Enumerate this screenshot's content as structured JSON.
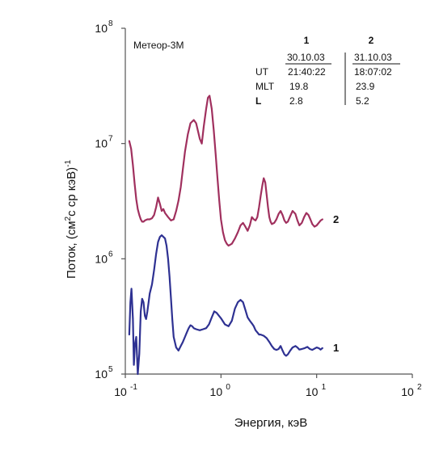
{
  "chart_data": {
    "type": "line",
    "xlabel": "Энергия, кэВ",
    "ylabel_main": "Поток, (см",
    "ylabel_exp1": "2",
    "ylabel_mid": "с ср кэВ)",
    "ylabel_exp2": "-1",
    "xscale": "log",
    "yscale": "log",
    "xlim": [
      0.1,
      100
    ],
    "ylim": [
      100000,
      100000000
    ],
    "grid": false,
    "x_ticks": [
      {
        "base": "10",
        "exp": "-1",
        "value": 0.1
      },
      {
        "base": "10",
        "exp": "0",
        "value": 1
      },
      {
        "base": "10",
        "exp": "1",
        "value": 10
      },
      {
        "base": "10",
        "exp": "2",
        "value": 100
      }
    ],
    "y_ticks": [
      {
        "base": "10",
        "exp": "5",
        "value": 100000
      },
      {
        "base": "10",
        "exp": "6",
        "value": 1000000
      },
      {
        "base": "10",
        "exp": "7",
        "value": 10000000
      },
      {
        "base": "10",
        "exp": "8",
        "value": 100000000
      }
    ],
    "legend": {
      "title": "Метеор-3М",
      "placement": "top",
      "columns": [
        "1",
        "2"
      ],
      "dates": [
        "30.10.03",
        "31.10.03"
      ],
      "rows": [
        {
          "label": "UT",
          "values": [
            "21:40:22",
            "18:07:02"
          ]
        },
        {
          "label": "MLT",
          "values": [
            "19.8",
            "23.9"
          ]
        },
        {
          "label": "L",
          "values": [
            "2.8",
            "5.2"
          ]
        }
      ]
    },
    "series": [
      {
        "name": "2",
        "color": "#a0305e",
        "x": [
          0.11,
          0.115,
          0.12,
          0.125,
          0.13,
          0.135,
          0.14,
          0.145,
          0.15,
          0.155,
          0.16,
          0.17,
          0.18,
          0.19,
          0.2,
          0.21,
          0.22,
          0.23,
          0.24,
          0.25,
          0.26,
          0.28,
          0.3,
          0.32,
          0.34,
          0.36,
          0.38,
          0.4,
          0.42,
          0.45,
          0.48,
          0.52,
          0.55,
          0.6,
          0.63,
          0.66,
          0.7,
          0.73,
          0.76,
          0.8,
          0.84,
          0.88,
          0.92,
          0.96,
          1.0,
          1.05,
          1.1,
          1.15,
          1.2,
          1.3,
          1.4,
          1.5,
          1.6,
          1.7,
          1.8,
          1.9,
          2.0,
          2.1,
          2.2,
          2.3,
          2.4,
          2.5,
          2.6,
          2.7,
          2.8,
          2.9,
          3.0,
          3.1,
          3.2,
          3.3,
          3.4,
          3.6,
          3.8,
          4.0,
          4.2,
          4.4,
          4.6,
          4.8,
          5.0,
          5.3,
          5.6,
          6.0,
          6.3,
          6.6,
          7.0,
          7.4,
          7.8,
          8.2,
          8.6,
          9.0,
          9.5,
          10.0,
          10.5,
          11.0,
          11.5
        ],
        "y": [
          10500000,
          9000000,
          6500000,
          4500000,
          3300000,
          2700000,
          2400000,
          2200000,
          2100000,
          2100000,
          2150000,
          2200000,
          2200000,
          2250000,
          2400000,
          2800000,
          3400000,
          3000000,
          2600000,
          2700000,
          2500000,
          2300000,
          2150000,
          2200000,
          2600000,
          3200000,
          4200000,
          6000000,
          8500000,
          12000000,
          15000000,
          16000000,
          15000000,
          11000000,
          10000000,
          14000000,
          20000000,
          25000000,
          26000000,
          20000000,
          13000000,
          8000000,
          5000000,
          3200000,
          2200000,
          1700000,
          1450000,
          1350000,
          1300000,
          1350000,
          1500000,
          1700000,
          1950000,
          2050000,
          1900000,
          1750000,
          1950000,
          2300000,
          2200000,
          2150000,
          2300000,
          2800000,
          3500000,
          4300000,
          5000000,
          4600000,
          3600000,
          2800000,
          2300000,
          2100000,
          2000000,
          2050000,
          2200000,
          2450000,
          2600000,
          2400000,
          2150000,
          2050000,
          2100000,
          2350000,
          2600000,
          2450000,
          2150000,
          1950000,
          2050000,
          2300000,
          2500000,
          2400000,
          2200000,
          2000000,
          1900000,
          1950000,
          2050000,
          2150000,
          2200000
        ]
      },
      {
        "name": "1",
        "color": "#2e3192",
        "x": [
          0.11,
          0.113,
          0.116,
          0.12,
          0.123,
          0.126,
          0.13,
          0.135,
          0.14,
          0.145,
          0.15,
          0.155,
          0.16,
          0.165,
          0.17,
          0.175,
          0.18,
          0.19,
          0.2,
          0.21,
          0.22,
          0.23,
          0.24,
          0.25,
          0.26,
          0.27,
          0.28,
          0.29,
          0.3,
          0.31,
          0.32,
          0.34,
          0.36,
          0.38,
          0.4,
          0.42,
          0.44,
          0.46,
          0.48,
          0.5,
          0.52,
          0.55,
          0.6,
          0.65,
          0.7,
          0.75,
          0.8,
          0.85,
          0.9,
          1.0,
          1.1,
          1.2,
          1.3,
          1.4,
          1.5,
          1.6,
          1.7,
          1.8,
          1.9,
          2.0,
          2.1,
          2.2,
          2.3,
          2.4,
          2.5,
          2.6,
          2.8,
          3.0,
          3.2,
          3.4,
          3.6,
          3.8,
          4.0,
          4.2,
          4.4,
          4.6,
          4.8,
          5.0,
          5.3,
          5.6,
          6.0,
          6.3,
          6.6,
          7.0,
          7.5,
          8.0,
          8.5,
          9.0,
          9.5,
          10.0,
          10.5,
          11.0,
          11.5
        ],
        "y": [
          220000,
          420000,
          550000,
          300000,
          120000,
          180000,
          210000,
          100000,
          150000,
          350000,
          450000,
          420000,
          320000,
          300000,
          350000,
          420000,
          500000,
          600000,
          800000,
          1100000,
          1400000,
          1550000,
          1600000,
          1550000,
          1500000,
          1300000,
          1000000,
          700000,
          450000,
          300000,
          210000,
          170000,
          160000,
          175000,
          190000,
          210000,
          230000,
          250000,
          265000,
          260000,
          250000,
          245000,
          240000,
          245000,
          250000,
          270000,
          310000,
          350000,
          340000,
          305000,
          270000,
          260000,
          290000,
          370000,
          420000,
          440000,
          420000,
          360000,
          310000,
          290000,
          275000,
          260000,
          240000,
          230000,
          220000,
          220000,
          215000,
          205000,
          190000,
          175000,
          165000,
          162000,
          165000,
          175000,
          160000,
          148000,
          144000,
          148000,
          160000,
          170000,
          175000,
          170000,
          163000,
          165000,
          168000,
          172000,
          165000,
          162000,
          166000,
          170000,
          168000,
          163000,
          168000
        ]
      }
    ]
  }
}
